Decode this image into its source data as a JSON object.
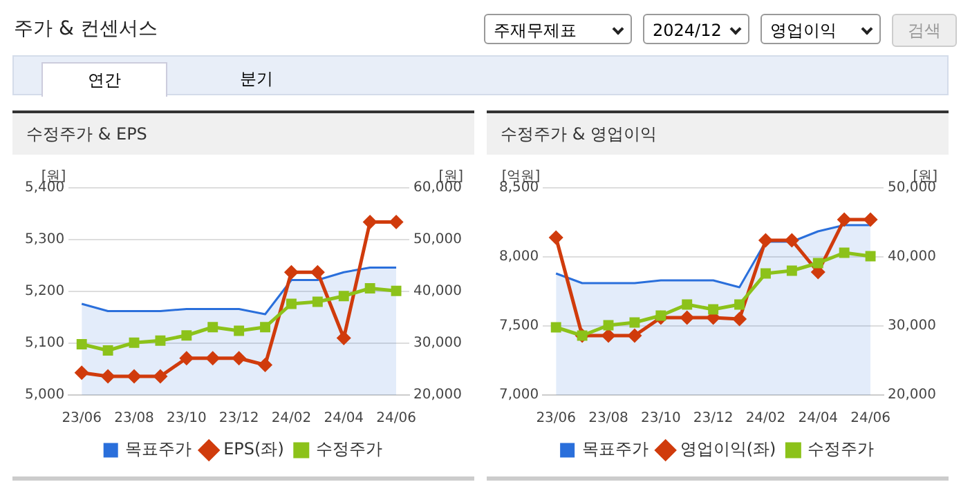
{
  "chart_data": [
    {
      "type": "other",
      "title": "주가 & 컨센서스",
      "annotations": [
        "주재무제표",
        "2024/12",
        "영업이익",
        "검색",
        "연간",
        "분기"
      ]
    },
    {
      "type": "line",
      "title": "수정주가 & EPS",
      "ylabel": "[원]",
      "y2label": "[원]",
      "categories": [
        "23/06",
        null,
        "23/08",
        null,
        "23/10",
        null,
        "23/12",
        null,
        "24/02",
        null,
        "24/04",
        null,
        "24/06"
      ],
      "series": [
        {
          "name": "목표주가",
          "type": "area",
          "axis": "y2",
          "color": "#2a6fdb",
          "marker": "none",
          "values": [
            37600,
            36200,
            36200,
            36200,
            36600,
            36600,
            36600,
            35600,
            42200,
            42200,
            43700,
            44600,
            44600
          ]
        },
        {
          "name": "EPS(좌)",
          "type": "line",
          "axis": "y",
          "color": "#d03b0c",
          "marker": "diamond",
          "values": [
            5043,
            5036,
            5036,
            5036,
            5071,
            5071,
            5071,
            5058,
            5237,
            5237,
            5110,
            5334,
            5334
          ]
        },
        {
          "name": "수정주가",
          "type": "line",
          "axis": "y2",
          "color": "#8cc21a",
          "marker": "square",
          "values": [
            29800,
            28600,
            30100,
            30500,
            31500,
            33100,
            32400,
            33100,
            37600,
            38000,
            39100,
            40600,
            40100
          ]
        }
      ],
      "ylim": [
        5000,
        5400
      ],
      "yticks": [
        {
          "value": 5000,
          "label": "5,000"
        },
        {
          "value": 5100,
          "label": "5,100"
        },
        {
          "value": 5200,
          "label": "5,200"
        },
        {
          "value": 5300,
          "label": "5,300"
        },
        {
          "value": 5400,
          "label": "5,400"
        }
      ],
      "y2lim": [
        20000,
        60000
      ],
      "y2ticks": [
        {
          "value": 20000,
          "label": "20,000"
        },
        {
          "value": 30000,
          "label": "30,000"
        },
        {
          "value": 40000,
          "label": "40,000"
        },
        {
          "value": 50000,
          "label": "50,000"
        },
        {
          "value": 60000,
          "label": "60,000"
        }
      ],
      "grid": "y",
      "legend": "bottom"
    },
    {
      "type": "line",
      "title": "수정주가 & 영업이익",
      "ylabel": "[억원]",
      "y2label": "[원]",
      "categories": [
        "23/06",
        null,
        "23/08",
        null,
        "23/10",
        null,
        "23/12",
        null,
        "24/02",
        null,
        "24/04",
        null,
        "24/06"
      ],
      "series": [
        {
          "name": "목표주가",
          "type": "area",
          "axis": "y2",
          "color": "#2a6fdb",
          "marker": "none",
          "values": [
            37600,
            36200,
            36200,
            36200,
            36600,
            36600,
            36600,
            35600,
            42200,
            42200,
            43700,
            44600,
            44600
          ]
        },
        {
          "name": "영업이익(좌)",
          "type": "line",
          "axis": "y",
          "color": "#d03b0c",
          "marker": "diamond",
          "values": [
            8140,
            7430,
            7430,
            7430,
            7560,
            7560,
            7560,
            7550,
            8120,
            8120,
            7890,
            8270,
            8270
          ]
        },
        {
          "name": "수정주가",
          "type": "line",
          "axis": "y2",
          "color": "#8cc21a",
          "marker": "square",
          "values": [
            29800,
            28600,
            30100,
            30500,
            31500,
            33100,
            32400,
            33100,
            37600,
            38000,
            39100,
            40600,
            40100
          ]
        }
      ],
      "ylim": [
        7000,
        8500
      ],
      "yticks": [
        {
          "value": 7000,
          "label": "7,000"
        },
        {
          "value": 7500,
          "label": "7,500"
        },
        {
          "value": 8000,
          "label": "8,000"
        },
        {
          "value": 8500,
          "label": "8,500"
        }
      ],
      "y2lim": [
        20000,
        50000
      ],
      "y2ticks": [
        {
          "value": 20000,
          "label": "20,000"
        },
        {
          "value": 30000,
          "label": "30,000"
        },
        {
          "value": 40000,
          "label": "40,000"
        },
        {
          "value": 50000,
          "label": "50,000"
        }
      ],
      "grid": "y",
      "legend": "bottom"
    }
  ]
}
